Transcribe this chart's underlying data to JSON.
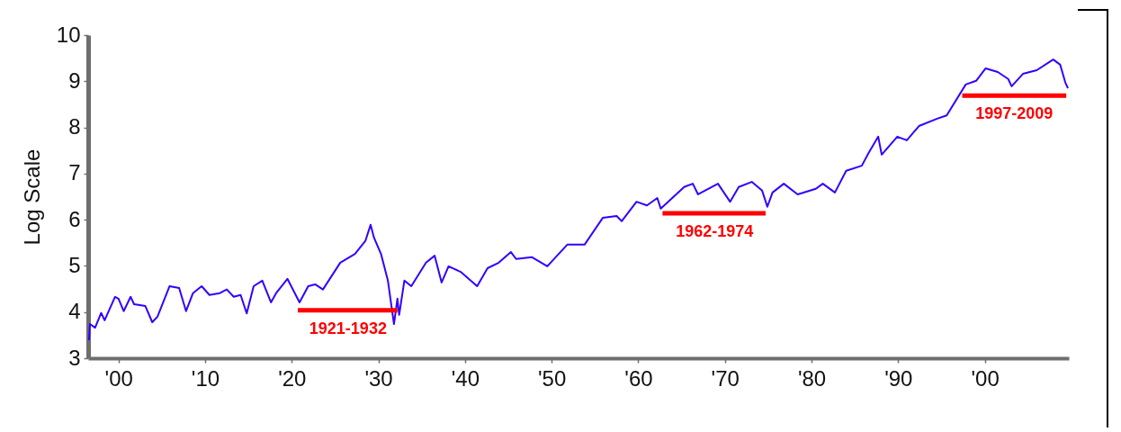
{
  "chart_data": {
    "type": "line",
    "ylabel": "Log Scale",
    "xlim": [
      1896.5,
      2009.7
    ],
    "xticks": [
      {
        "value": 1900,
        "label": "'00"
      },
      {
        "value": 1910,
        "label": "'10"
      },
      {
        "value": 1920,
        "label": "'20"
      },
      {
        "value": 1930,
        "label": "'30"
      },
      {
        "value": 1940,
        "label": "'40"
      },
      {
        "value": 1950,
        "label": "'50"
      },
      {
        "value": 1960,
        "label": "'60"
      },
      {
        "value": 1970,
        "label": "'70"
      },
      {
        "value": 1980,
        "label": "'80"
      },
      {
        "value": 1990,
        "label": "'90"
      },
      {
        "value": 2000,
        "label": "'00"
      }
    ],
    "ylim": [
      3,
      10
    ],
    "yticks": [
      3,
      4,
      5,
      6,
      7,
      8,
      9,
      10
    ],
    "series": [
      {
        "color": "#3300ff",
        "x": [
          1896.6,
          1896.7,
          1897.3,
          1898.0,
          1898.4,
          1899.6,
          1900.0,
          1900.6,
          1901.4,
          1901.8,
          1903.1,
          1903.9,
          1904.5,
          1905.9,
          1907.0,
          1907.8,
          1908.6,
          1909.6,
          1910.5,
          1911.7,
          1912.5,
          1913.3,
          1914.1,
          1914.8,
          1915.6,
          1916.6,
          1917.6,
          1918.2,
          1919.5,
          1920.9,
          1921.9,
          1922.7,
          1923.6,
          1925.6,
          1927.3,
          1928.5,
          1929.1,
          1929.5,
          1930.3,
          1931.1,
          1931.8,
          1932.2,
          1932.4,
          1933.0,
          1933.8,
          1935.5,
          1936.5,
          1937.3,
          1938.1,
          1939.5,
          1941.4,
          1942.6,
          1943.9,
          1945.3,
          1945.9,
          1947.7,
          1948.8,
          1949.5,
          1951.8,
          1953.8,
          1955.9,
          1957.5,
          1958.1,
          1959.8,
          1961.0,
          1962.2,
          1962.6,
          1965.3,
          1966.3,
          1966.9,
          1969.2,
          1970.6,
          1971.6,
          1973.1,
          1974.3,
          1974.9,
          1975.5,
          1976.8,
          1978.4,
          1980.5,
          1981.3,
          1982.7,
          1984.0,
          1985.8,
          1986.6,
          1987.7,
          1988.1,
          1989.9,
          1991.0,
          1992.4,
          1994.5,
          1995.6,
          1997.8,
          1999.0,
          2000.1,
          2001.5,
          2002.7,
          2003.1,
          2004.4,
          2006.0,
          2007.9,
          2008.7,
          2009.3,
          2009.6
        ],
        "values": [
          3.39,
          3.74,
          3.66,
          3.98,
          3.82,
          4.33,
          4.29,
          4.02,
          4.33,
          4.17,
          4.13,
          3.78,
          3.9,
          4.56,
          4.52,
          4.02,
          4.41,
          4.56,
          4.37,
          4.41,
          4.49,
          4.33,
          4.37,
          3.97,
          4.56,
          4.68,
          4.21,
          4.41,
          4.72,
          4.21,
          4.56,
          4.6,
          4.49,
          5.07,
          5.26,
          5.54,
          5.89,
          5.61,
          5.26,
          4.68,
          3.74,
          4.29,
          3.94,
          4.68,
          4.56,
          5.07,
          5.22,
          4.64,
          4.99,
          4.87,
          4.56,
          4.95,
          5.07,
          5.3,
          5.15,
          5.19,
          5.07,
          4.99,
          5.46,
          5.46,
          6.04,
          6.08,
          5.97,
          6.39,
          6.31,
          6.47,
          6.24,
          6.71,
          6.78,
          6.55,
          6.78,
          6.39,
          6.71,
          6.82,
          6.63,
          6.28,
          6.59,
          6.78,
          6.55,
          6.67,
          6.78,
          6.59,
          7.06,
          7.17,
          7.45,
          7.8,
          7.41,
          7.8,
          7.72,
          8.03,
          8.19,
          8.26,
          8.93,
          9.01,
          9.28,
          9.2,
          9.05,
          8.89,
          9.16,
          9.24,
          9.47,
          9.36,
          8.97,
          8.85
        ]
      },
      {
        "color": "#ff0000",
        "x": [
          1920.7,
          1932.2
        ],
        "values": [
          4.04,
          4.04
        ]
      },
      {
        "color": "#ff0000",
        "x": [
          1962.8,
          1974.7
        ],
        "values": [
          6.14,
          6.14
        ]
      },
      {
        "color": "#ff0000",
        "x": [
          1997.4,
          2009.4
        ],
        "values": [
          8.69,
          8.69
        ]
      }
    ],
    "annotations": [
      {
        "text": "1921-1932",
        "x": 1926.5,
        "y": 4.04
      },
      {
        "text": "1962-1974",
        "x": 1968.8,
        "y": 6.14
      },
      {
        "text": "1997-2009",
        "x": 2003.4,
        "y": 8.69
      }
    ]
  }
}
